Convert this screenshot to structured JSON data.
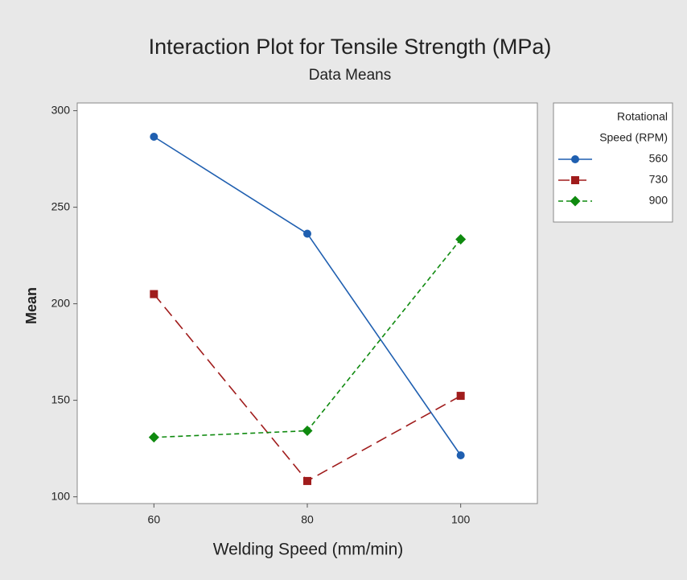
{
  "chart_data": {
    "type": "line",
    "title": "Interaction Plot for Tensile Strength (MPa)",
    "subtitle": "Data Means",
    "x_label": "Welding Speed (mm/min)",
    "y_label": "Mean",
    "x": [
      60,
      80,
      100
    ],
    "xlim": [
      50,
      110
    ],
    "xticks": [
      60,
      80,
      100
    ],
    "ylim": [
      96.5,
      304
    ],
    "yticks": [
      100,
      150,
      200,
      250,
      300
    ],
    "legend_title": [
      "Rotational",
      "Speed (RPM)"
    ],
    "legend_position": "outside right",
    "series": [
      {
        "name": "560",
        "color": "#1f5fb0",
        "marker": "circle",
        "dash": "solid",
        "values": [
          286.5,
          236.3,
          121.5
        ]
      },
      {
        "name": "730",
        "color": "#a01c1c",
        "marker": "square",
        "dash": "long",
        "values": [
          205,
          108.2,
          152.3
        ]
      },
      {
        "name": "900",
        "color": "#0f8a0f",
        "marker": "diamond",
        "dash": "short",
        "values": [
          130.8,
          134.2,
          233.4
        ]
      }
    ]
  }
}
